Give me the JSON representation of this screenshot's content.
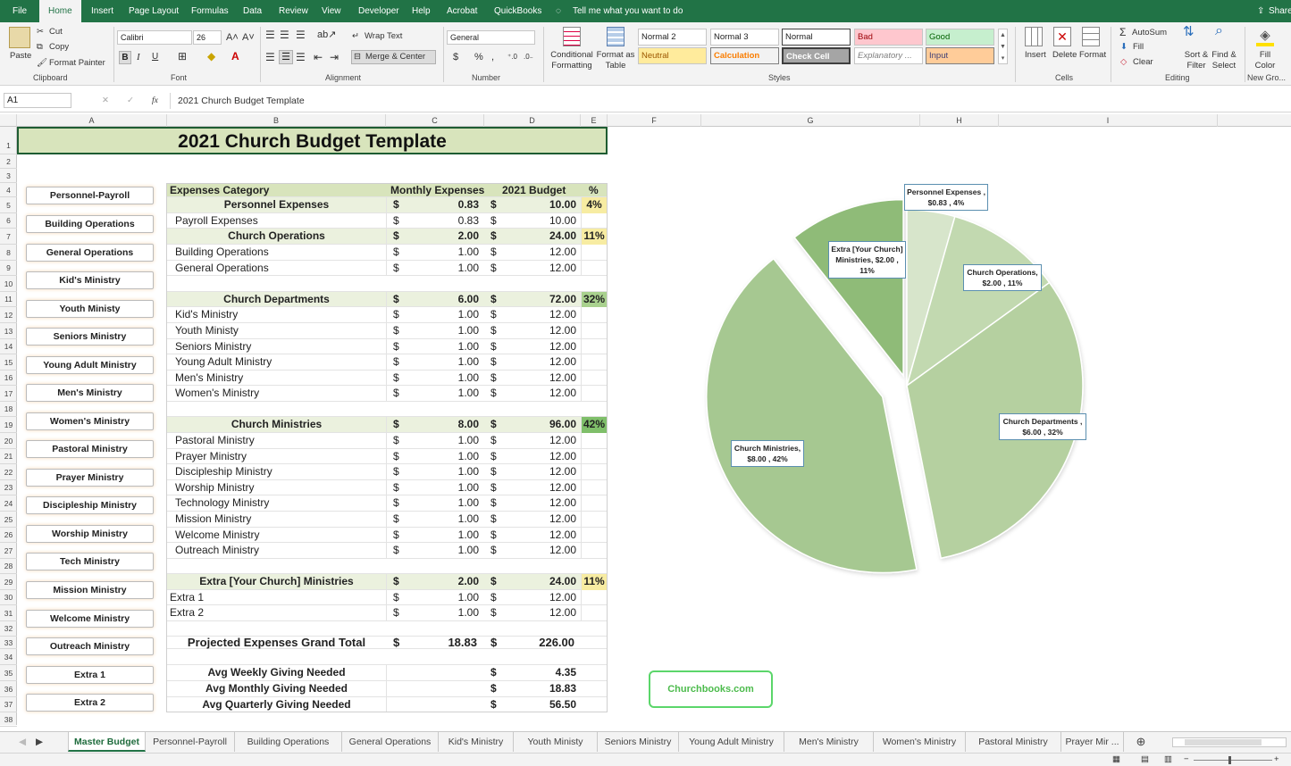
{
  "menu": {
    "tabs": [
      "File",
      "Home",
      "Insert",
      "Page Layout",
      "Formulas",
      "Data",
      "Review",
      "View",
      "Developer",
      "Help",
      "Acrobat",
      "QuickBooks"
    ],
    "tell_me": "Tell me what you want to do",
    "share": "Share"
  },
  "ribbon": {
    "clipboard": {
      "paste": "Paste",
      "cut": "Cut",
      "copy": "Copy",
      "format_painter": "Format Painter",
      "group": "Clipboard"
    },
    "font": {
      "name": "Calibri",
      "size": "26",
      "bold": "B",
      "italic": "I",
      "underline": "U",
      "group": "Font"
    },
    "alignment": {
      "wrap": "Wrap Text",
      "merge": "Merge & Center",
      "group": "Alignment"
    },
    "number": {
      "format": "General",
      "currency": "$",
      "percent": "%",
      "comma": ",",
      "group": "Number"
    },
    "styles": {
      "conditional": "Conditional Formatting",
      "format_table": "Format as Table",
      "cells": [
        "Normal 2",
        "Normal 3",
        "Normal",
        "Bad",
        "Good",
        "Neutral",
        "Calculation",
        "Check Cell",
        "Explanatory ...",
        "Input"
      ],
      "group": "Styles"
    },
    "cells_group": {
      "insert": "Insert",
      "delete": "Delete",
      "format": "Format",
      "group": "Cells"
    },
    "editing": {
      "autosum": "AutoSum",
      "fill": "Fill",
      "clear": "Clear",
      "sort": "Sort & Filter",
      "find": "Find & Select",
      "group": "Editing"
    },
    "newgroup": {
      "fill_color": "Fill Color",
      "group": "New Gro..."
    }
  },
  "formula_bar": {
    "name_box": "A1",
    "fx": "fx",
    "content": "2021 Church Budget Template"
  },
  "columns": [
    "A",
    "B",
    "C",
    "D",
    "E",
    "F",
    "G",
    "H",
    "I"
  ],
  "rows": [
    "1",
    "2",
    "3",
    "4",
    "5",
    "6",
    "7",
    "8",
    "9",
    "10",
    "11",
    "12",
    "13",
    "14",
    "15",
    "16",
    "17",
    "18",
    "19",
    "20",
    "21",
    "22",
    "23",
    "24",
    "25",
    "26",
    "27",
    "28",
    "29",
    "30",
    "31",
    "32",
    "33",
    "34",
    "35",
    "36",
    "37",
    "38"
  ],
  "sheet": {
    "title": "2021 Church Budget Template",
    "headers": {
      "category": "Expenses Category",
      "monthly": "Monthly Expenses",
      "budget": "2021 Budget",
      "pct": "%"
    },
    "table_rows": [
      {
        "r": 5,
        "label": "Personnel Expenses",
        "cur1": "$",
        "monthly": "0.83",
        "cur2": "$",
        "budget": "10.00",
        "pct": "4%",
        "type": "section",
        "pctcolor": "#f7eca2"
      },
      {
        "r": 6,
        "label": "Payroll Expenses",
        "cur1": "$",
        "monthly": "0.83",
        "cur2": "$",
        "budget": "10.00",
        "pct": "",
        "type": "item"
      },
      {
        "r": 7,
        "label": "Church Operations",
        "cur1": "$",
        "monthly": "2.00",
        "cur2": "$",
        "budget": "24.00",
        "pct": "11%",
        "type": "section",
        "pctcolor": "#f7eca2"
      },
      {
        "r": 8,
        "label": "Building Operations",
        "cur1": "$",
        "monthly": "1.00",
        "cur2": "$",
        "budget": "12.00",
        "pct": "",
        "type": "item"
      },
      {
        "r": 9,
        "label": "General Operations",
        "cur1": "$",
        "monthly": "1.00",
        "cur2": "$",
        "budget": "12.00",
        "pct": "",
        "type": "item"
      },
      {
        "r": 11,
        "label": "Church Departments",
        "cur1": "$",
        "monthly": "6.00",
        "cur2": "$",
        "budget": "72.00",
        "pct": "32%",
        "type": "section",
        "pctcolor": "#a9d18e"
      },
      {
        "r": 12,
        "label": "Kid's Ministry",
        "cur1": "$",
        "monthly": "1.00",
        "cur2": "$",
        "budget": "12.00",
        "pct": "",
        "type": "item"
      },
      {
        "r": 13,
        "label": "Youth Ministy",
        "cur1": "$",
        "monthly": "1.00",
        "cur2": "$",
        "budget": "12.00",
        "pct": "",
        "type": "item"
      },
      {
        "r": 14,
        "label": "Seniors Ministry",
        "cur1": "$",
        "monthly": "1.00",
        "cur2": "$",
        "budget": "12.00",
        "pct": "",
        "type": "item"
      },
      {
        "r": 15,
        "label": "Young Adult Ministry",
        "cur1": "$",
        "monthly": "1.00",
        "cur2": "$",
        "budget": "12.00",
        "pct": "",
        "type": "item"
      },
      {
        "r": 16,
        "label": "Men's Ministry",
        "cur1": "$",
        "monthly": "1.00",
        "cur2": "$",
        "budget": "12.00",
        "pct": "",
        "type": "item"
      },
      {
        "r": 17,
        "label": "Women's Ministry",
        "cur1": "$",
        "monthly": "1.00",
        "cur2": "$",
        "budget": "12.00",
        "pct": "",
        "type": "item"
      },
      {
        "r": 19,
        "label": "Church Ministries",
        "cur1": "$",
        "monthly": "8.00",
        "cur2": "$",
        "budget": "96.00",
        "pct": "42%",
        "type": "section",
        "pctcolor": "#7fbf6a"
      },
      {
        "r": 20,
        "label": "Pastoral Ministry",
        "cur1": "$",
        "monthly": "1.00",
        "cur2": "$",
        "budget": "12.00",
        "pct": "",
        "type": "item"
      },
      {
        "r": 21,
        "label": "Prayer Ministry",
        "cur1": "$",
        "monthly": "1.00",
        "cur2": "$",
        "budget": "12.00",
        "pct": "",
        "type": "item"
      },
      {
        "r": 22,
        "label": "Discipleship Ministry",
        "cur1": "$",
        "monthly": "1.00",
        "cur2": "$",
        "budget": "12.00",
        "pct": "",
        "type": "item"
      },
      {
        "r": 23,
        "label": "Worship Ministry",
        "cur1": "$",
        "monthly": "1.00",
        "cur2": "$",
        "budget": "12.00",
        "pct": "",
        "type": "item"
      },
      {
        "r": 24,
        "label": "Technology Ministry",
        "cur1": "$",
        "monthly": "1.00",
        "cur2": "$",
        "budget": "12.00",
        "pct": "",
        "type": "item"
      },
      {
        "r": 25,
        "label": "Mission Ministry",
        "cur1": "$",
        "monthly": "1.00",
        "cur2": "$",
        "budget": "12.00",
        "pct": "",
        "type": "item"
      },
      {
        "r": 26,
        "label": "Welcome Ministry",
        "cur1": "$",
        "monthly": "1.00",
        "cur2": "$",
        "budget": "12.00",
        "pct": "",
        "type": "item"
      },
      {
        "r": 27,
        "label": "Outreach Ministry",
        "cur1": "$",
        "monthly": "1.00",
        "cur2": "$",
        "budget": "12.00",
        "pct": "",
        "type": "item"
      },
      {
        "r": 29,
        "label": "Extra [Your Church] Ministries",
        "cur1": "$",
        "monthly": "2.00",
        "cur2": "$",
        "budget": "24.00",
        "pct": "11%",
        "type": "section",
        "pctcolor": "#f7eca2"
      },
      {
        "r": 30,
        "label": "Extra 1",
        "cur1": "$",
        "monthly": "1.00",
        "cur2": "$",
        "budget": "12.00",
        "pct": "",
        "type": "extra"
      },
      {
        "r": 31,
        "label": "Extra 2",
        "cur1": "$",
        "monthly": "1.00",
        "cur2": "$",
        "budget": "12.00",
        "pct": "",
        "type": "extra"
      }
    ],
    "grand_total": {
      "label": "Projected Expenses Grand Total",
      "cur1": "$",
      "monthly": "18.83",
      "cur2": "$",
      "budget": "226.00"
    },
    "giving": [
      {
        "r": 35,
        "label": "Avg Weekly Giving Needed",
        "cur": "$",
        "value": "4.35"
      },
      {
        "r": 36,
        "label": "Avg Monthly Giving Needed",
        "cur": "$",
        "value": "18.83"
      },
      {
        "r": 37,
        "label": "Avg Quarterly Giving Needed",
        "cur": "$",
        "value": "56.50"
      }
    ],
    "nav_buttons": [
      "Personnel-Payroll",
      "Building Operations",
      "General Operations",
      "Kid's Ministry",
      "Youth Ministy",
      "Seniors Ministry",
      "Young Adult Ministry",
      "Men's Ministry",
      "Women's Ministry",
      "Pastoral Ministry",
      "Prayer Ministry",
      "Discipleship Ministry",
      "Worship Ministry",
      "Tech Ministry",
      "Mission Ministry",
      "Welcome Ministry",
      "Outreach Ministry",
      "Extra 1",
      "Extra 2"
    ],
    "link_button": "Churchbooks.com"
  },
  "chart_data": {
    "type": "pie",
    "categories": [
      "Personnel Expenses",
      "Church Operations",
      "Church Departments",
      "Church Ministries",
      "Extra [Your Church] Ministries"
    ],
    "values": [
      0.83,
      2.0,
      6.0,
      8.0,
      2.0
    ],
    "percents": [
      4,
      11,
      32,
      42,
      11
    ],
    "colors": [
      "#d7e5cb",
      "#c2d9b0",
      "#b5d0a0",
      "#a6c891",
      "#8fbb78"
    ],
    "exploded": [
      "Church Ministries",
      "Extra [Your Church] Ministries"
    ],
    "data_labels": [
      {
        "line1": "Personnel Expenses ,",
        "line2": "$0.83 , 4%"
      },
      {
        "line1": "Church Operations,",
        "line2": "$2.00 , 11%"
      },
      {
        "line1": "Church Departments ,",
        "line2": "$6.00 , 32%"
      },
      {
        "line1": "Church Ministries,",
        "line2": "$8.00 , 42%"
      },
      {
        "line1": "Extra [Your Church]",
        "line2": "Ministries, $2.00 ,",
        "line3": "11%"
      }
    ]
  },
  "sheet_tabs": [
    "Master Budget",
    "Personnel-Payroll",
    "Building Operations",
    "General Operations",
    "Kid's Ministry",
    "Youth Ministy",
    "Seniors Ministry",
    "Young Adult Ministry",
    "Men's Ministry",
    "Women's Ministry",
    "Pastoral Ministry",
    "Prayer Mir ..."
  ],
  "active_tab": "Master Budget"
}
